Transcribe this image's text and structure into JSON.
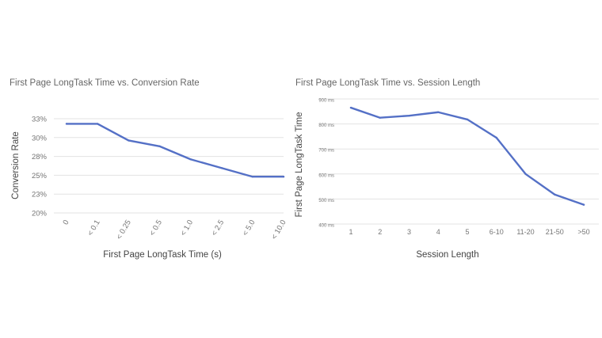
{
  "chart_data": [
    {
      "type": "line",
      "title": "First Page LongTask Time vs. Conversion Rate",
      "xlabel": "First Page LongTask Time (s)",
      "ylabel": "Conversion Rate",
      "categories": [
        "0",
        "< 0.1",
        "< 0.25",
        "< 0.5",
        "< 1.0",
        "< 2.5",
        "< 5.0",
        "< 10.0"
      ],
      "y_ticks": [
        "33%",
        "30%",
        "28%",
        "25%",
        "23%",
        "20%"
      ],
      "ylim": [
        20,
        33
      ],
      "grid": true,
      "legend": "none",
      "color": "#5470c6",
      "series": [
        {
          "values": [
            32.3,
            32.3,
            30.0,
            29.2,
            27.4,
            26.2,
            25.0,
            25.0
          ]
        }
      ]
    },
    {
      "type": "line",
      "title": "First Page LongTask Time vs. Session Length",
      "xlabel": "Session Length",
      "ylabel": "First Page LongTask Time",
      "categories": [
        "1",
        "2",
        "3",
        "4",
        "5",
        "6-10",
        "11-20",
        "21-50",
        ">50"
      ],
      "y_ticks": [
        "900 ms",
        "800 ms",
        "700 ms",
        "600 ms",
        "500 ms",
        "400 ms"
      ],
      "ylim": [
        400,
        900
      ],
      "grid": true,
      "legend": "none",
      "color": "#5470c6",
      "series": [
        {
          "values": [
            865,
            825,
            833,
            847,
            818,
            745,
            600,
            518,
            477
          ]
        }
      ]
    }
  ]
}
